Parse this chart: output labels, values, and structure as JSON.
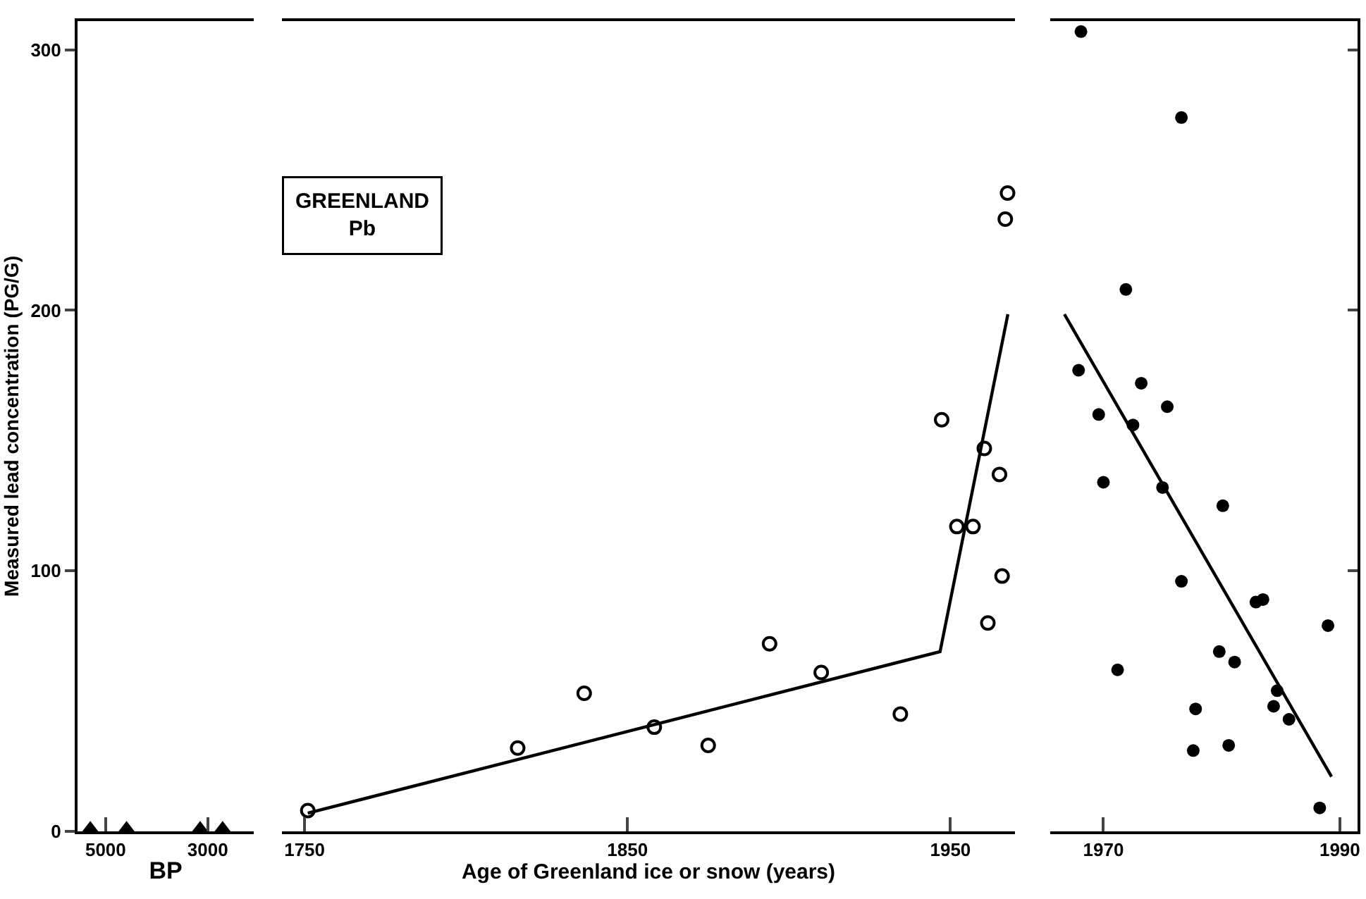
{
  "chart_data": [
    {
      "type": "scatter",
      "xlabel": "BP",
      "ylabel": "Measured lead concentration (PG/G)",
      "xlim": [
        5550,
        2100
      ],
      "xticks": [
        5000,
        3000
      ],
      "ylim": [
        0,
        311
      ],
      "yticks": [
        0,
        100,
        200,
        300
      ],
      "grid": false,
      "marker": "triangle",
      "series": [
        {
          "color": "#000000",
          "x": [
            5300,
            4590,
            3150,
            2710
          ],
          "values": [
            1,
            1,
            1,
            1
          ]
        }
      ]
    },
    {
      "type": "scatter",
      "xlabel": "Age of Greenland ice or snow (years)",
      "xlim": [
        1743,
        1970
      ],
      "xticks": [
        1750,
        1850,
        1950
      ],
      "ylim": [
        0,
        311
      ],
      "tick_labels": "x",
      "grid": false,
      "marker": "circle",
      "annotations": [
        "GREENLAND\nPb"
      ],
      "series": [
        {
          "color": "#000000",
          "x": [
            1751,
            1816,
            1836.6,
            1858.3,
            1875,
            1894,
            1910,
            1934.5,
            1947.3,
            1952,
            1957,
            1960.5,
            1961.6,
            1965.2,
            1966,
            1967,
            1967.7
          ],
          "values": [
            8,
            32,
            53,
            40,
            33,
            72,
            61,
            45,
            158,
            117,
            117,
            147,
            80,
            137,
            98,
            235,
            245
          ]
        },
        {
          "type": "line",
          "color": "#000000",
          "marker": "none",
          "x": [
            1751,
            1946.8,
            1967.8
          ],
          "values": [
            7,
            69,
            198.5
          ]
        }
      ]
    },
    {
      "type": "scatter",
      "xlim": [
        1965.5,
        1991.5
      ],
      "xticks": [
        1970,
        1990
      ],
      "ylim": [
        0,
        311
      ],
      "yticks": [
        0,
        100,
        200,
        300
      ],
      "tick_labels": "x",
      "grid": false,
      "marker": "circle",
      "series": [
        {
          "color": "#000000",
          "x": [
            1968.1,
            1976.6,
            1971.9,
            1967.9,
            1973.2,
            1969.6,
            1975.4,
            1972.5,
            1970,
            1975,
            1980.1,
            1976.6,
            1982.9,
            1983.5,
            1989,
            1971.2,
            1979.8,
            1981.1,
            1984.7,
            1984.4,
            1985.7,
            1977.8,
            1977.6,
            1980.6,
            1988.3
          ],
          "values": [
            307,
            274,
            208,
            177,
            172,
            160,
            163,
            156,
            134,
            132,
            125,
            96,
            88,
            89,
            79,
            62,
            69,
            65,
            54,
            48,
            43,
            47,
            31,
            33,
            9
          ]
        },
        {
          "type": "line",
          "color": "#000000",
          "marker": "none",
          "x": [
            1966.7,
            1989.3
          ],
          "values": [
            198.5,
            21
          ]
        }
      ]
    }
  ]
}
